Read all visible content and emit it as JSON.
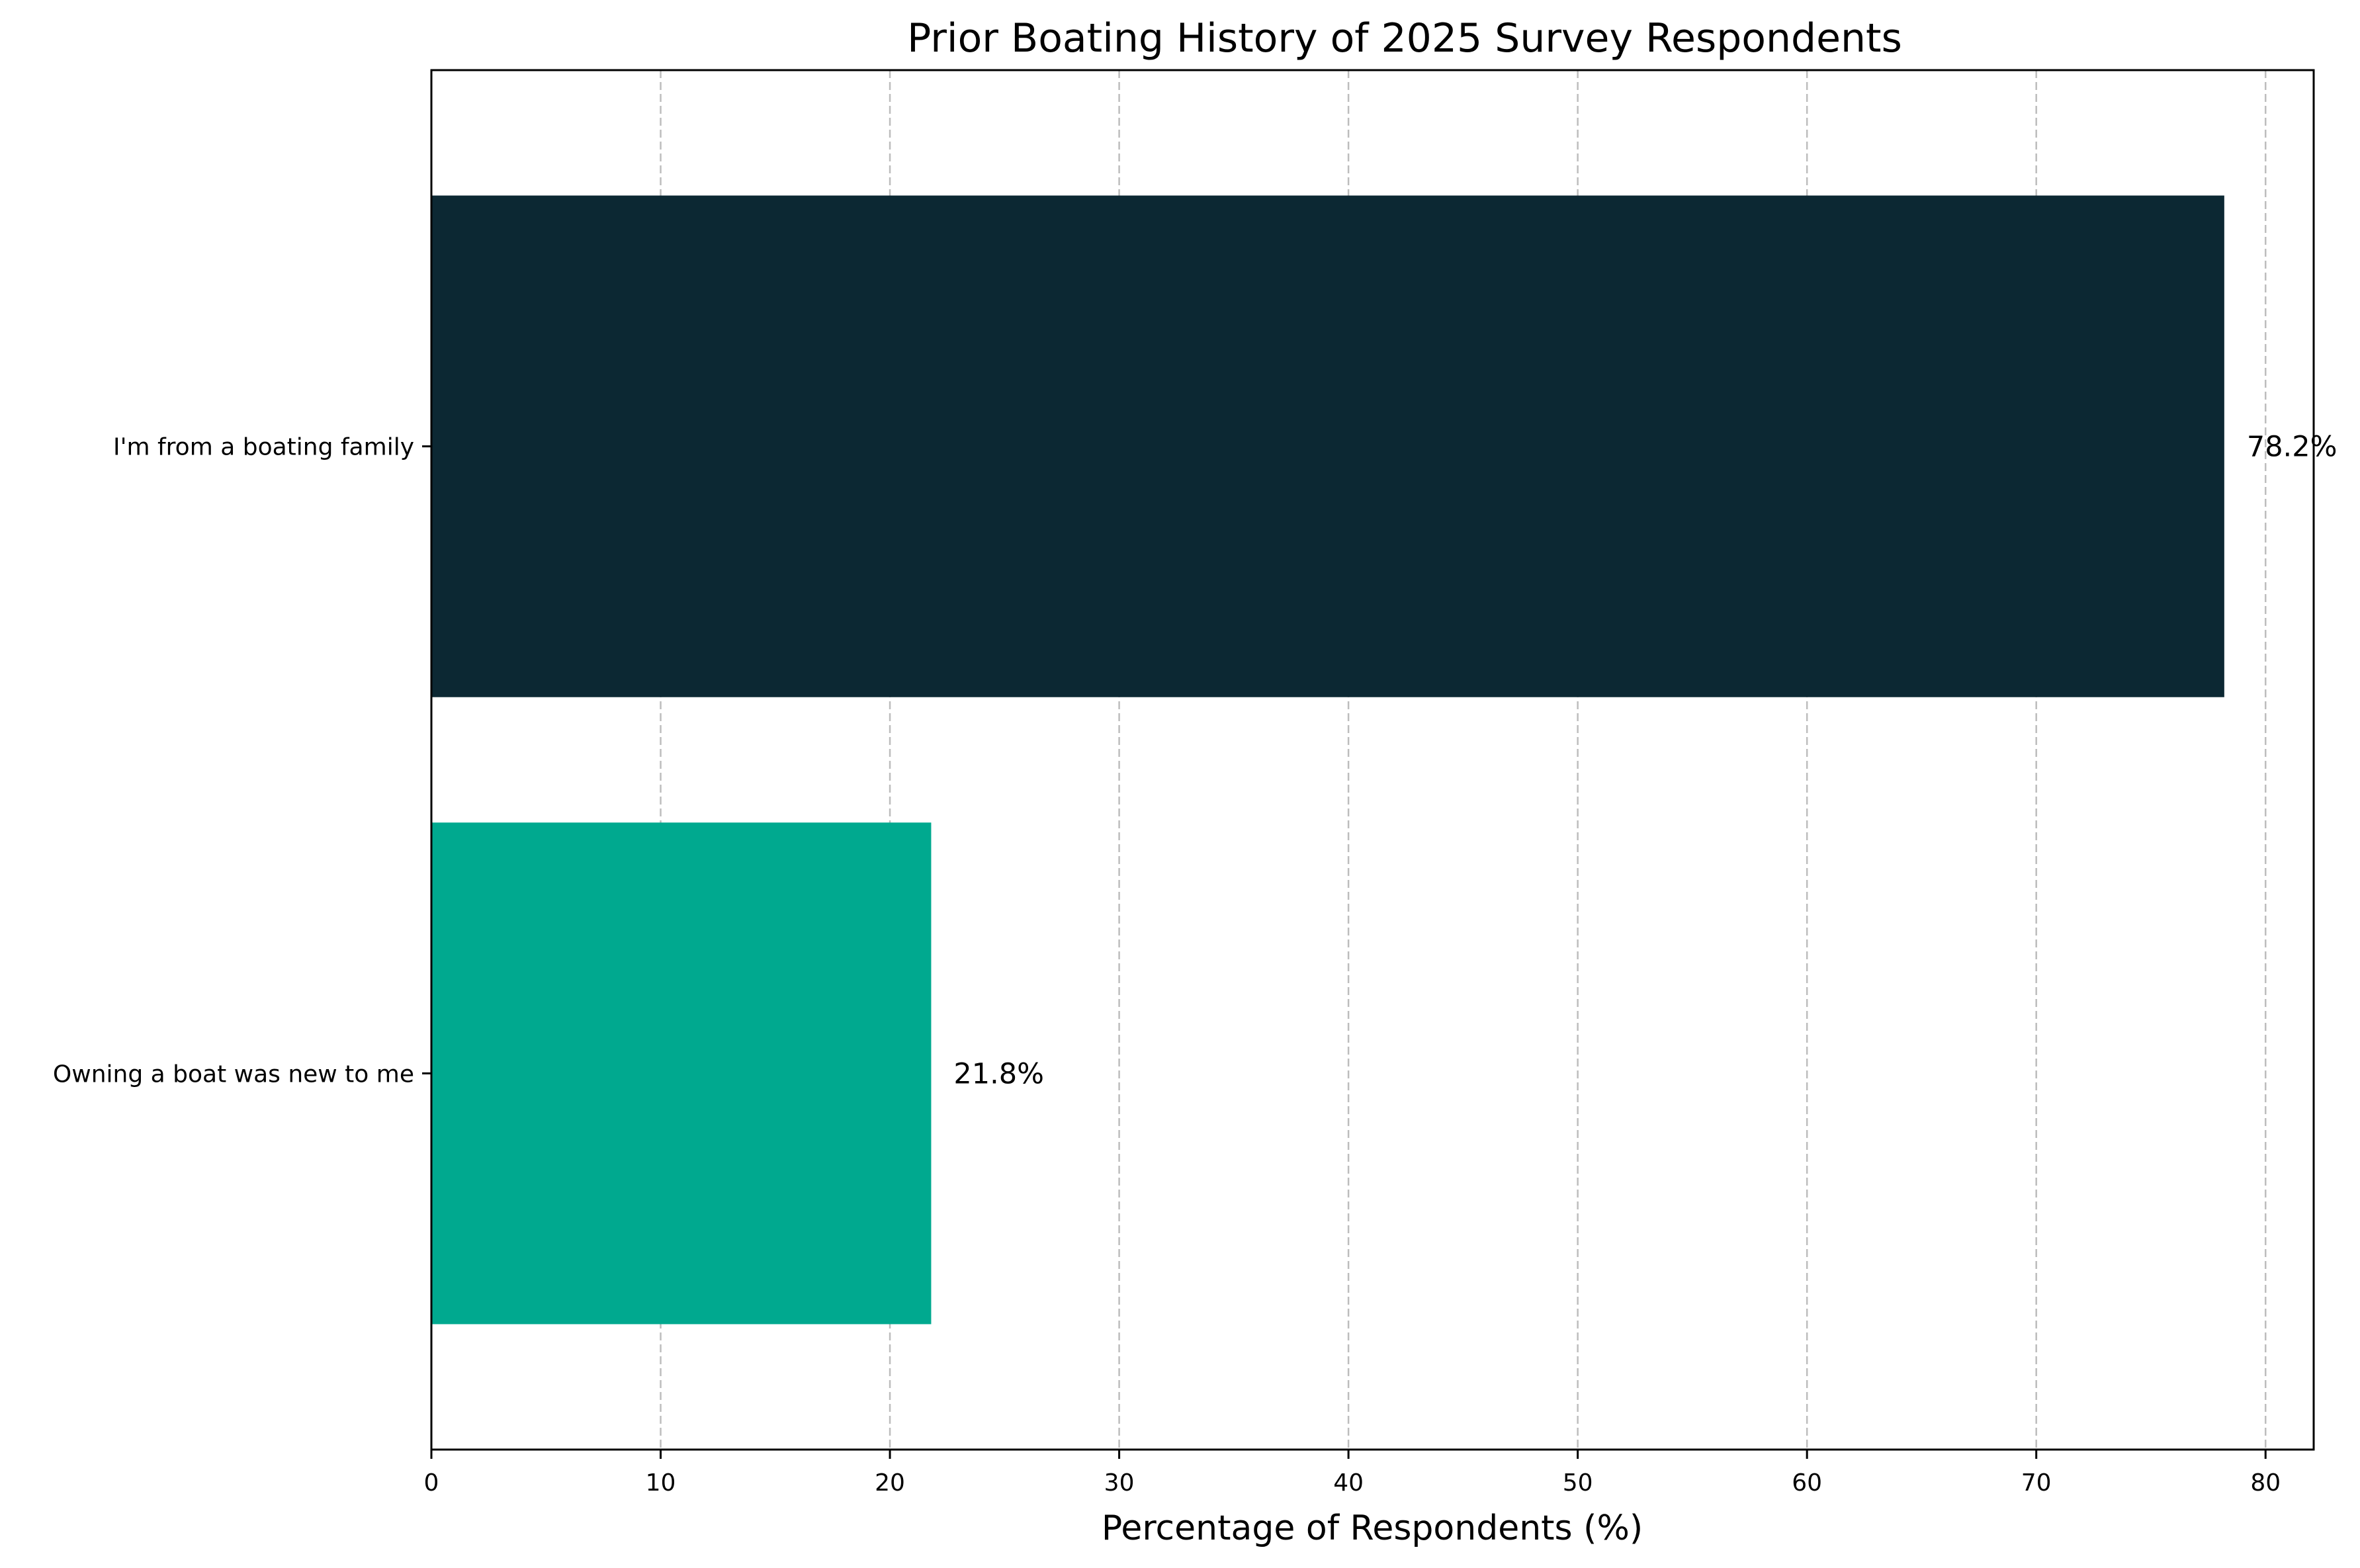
{
  "chart_data": {
    "type": "bar",
    "orientation": "horizontal",
    "title": "Prior Boating History of 2025 Survey Respondents",
    "xlabel": "Percentage of Respondents (%)",
    "ylabel": "",
    "xlim": [
      0,
      82.1
    ],
    "x_ticks": [
      "0",
      "10",
      "20",
      "30",
      "40",
      "50",
      "60",
      "70",
      "80"
    ],
    "grid": "x-axis, dashed",
    "legend": "none",
    "bars": [
      {
        "category": "I'm from a boating family",
        "value": 78.2,
        "label": "78.2%",
        "color": "#0c2833"
      },
      {
        "category": "Owning a boat was new to me",
        "value": 21.8,
        "label": "21.8%",
        "color": "#00a98f"
      }
    ]
  }
}
